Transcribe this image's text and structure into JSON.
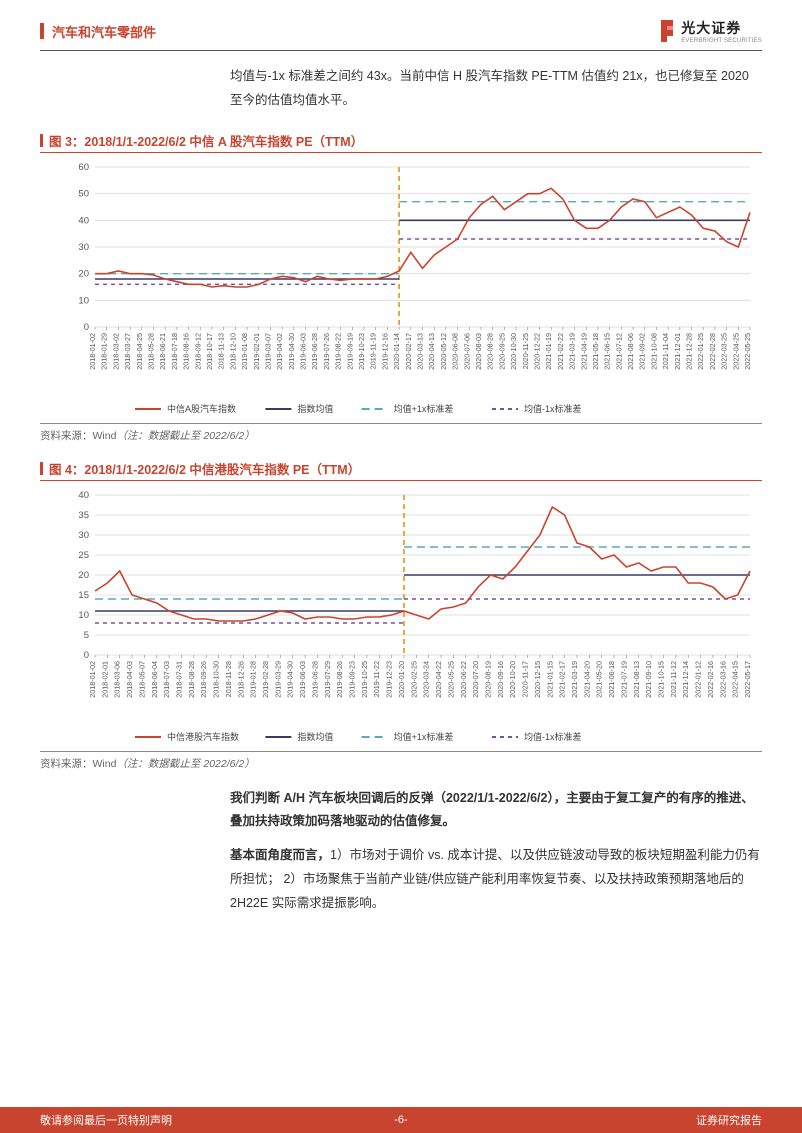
{
  "header": {
    "section_title": "汽车和汽车零部件",
    "logo_cn": "光大证券",
    "logo_en": "EVERBRIGHT SECURITIES",
    "logo_color": "#c8442f"
  },
  "intro_paragraph": "均值与-1x 标准差之间约 43x。当前中信 H 股汽车指数 PE-TTM 估值约 21x，也已修复至 2020 至今的估值均值水平。",
  "fig3": {
    "title": "图 3：2018/1/1-2022/6/2 中信 A 股汽车指数 PE（TTM）",
    "source_prefix": "资料来源：Wind",
    "source_note": "（注：数据截止至 2022/6/2）",
    "type": "line",
    "ylim": [
      0,
      60
    ],
    "yticks": [
      0,
      10,
      20,
      30,
      40,
      50,
      60
    ],
    "ytick_step": 10,
    "xlabels": [
      "2018-01-02",
      "2018-01-29",
      "2018-03-02",
      "2018-03-27",
      "2018-04-25",
      "2018-05-28",
      "2018-06-21",
      "2018-07-18",
      "2018-08-16",
      "2018-09-12",
      "2018-10-17",
      "2018-11-13",
      "2018-12-10",
      "2019-01-08",
      "2019-02-01",
      "2019-03-07",
      "2019-04-02",
      "2019-04-30",
      "2019-06-03",
      "2019-06-28",
      "2019-07-26",
      "2019-08-22",
      "2019-09-19",
      "2019-10-23",
      "2019-11-19",
      "2019-12-16",
      "2020-01-14",
      "2020-02-17",
      "2020-03-13",
      "2020-04-13",
      "2020-05-12",
      "2020-06-08",
      "2020-07-06",
      "2020-08-03",
      "2020-08-28",
      "2020-09-25",
      "2020-10-30",
      "2020-11-25",
      "2020-12-22",
      "2021-01-19",
      "2021-02-22",
      "2021-03-19",
      "2021-04-19",
      "2021-05-18",
      "2021-06-15",
      "2021-07-12",
      "2021-08-06",
      "2021-09-02",
      "2021-10-08",
      "2021-11-04",
      "2021-12-01",
      "2021-12-28",
      "2022-01-25",
      "2022-02-28",
      "2022-03-25",
      "2022-04-25",
      "2022-05-25"
    ],
    "vline_index": 26,
    "series_main": {
      "label": "中信A股汽车指数",
      "color": "#c8442f",
      "line_width": 1.6,
      "values": [
        20,
        20,
        21,
        20,
        20,
        19.5,
        18,
        17,
        16,
        16,
        15,
        15.5,
        15,
        15,
        16,
        18,
        19,
        18.5,
        17,
        19,
        18,
        17.5,
        18,
        18,
        18,
        19,
        21,
        28,
        22,
        27,
        30,
        33,
        41,
        46,
        49,
        44,
        47,
        50,
        50,
        52,
        48,
        40,
        37,
        37,
        40,
        45,
        48,
        47,
        41,
        43,
        45,
        42,
        37,
        36,
        32,
        30,
        43
      ],
      "segment1_mean": {
        "label": "指数均值",
        "color": "#3a3a6a",
        "dash": "none",
        "value": 18
      },
      "segment1_plus": {
        "label": "均值+1x标准差",
        "color": "#5aa9b8",
        "dash": "8,5",
        "value": 20
      },
      "segment1_minus": {
        "label": "均值-1x标准差",
        "color": "#7a4ea0",
        "dash": "4,4",
        "value": 16
      },
      "segment2_mean": {
        "value": 40
      },
      "segment2_plus": {
        "value": 47
      },
      "segment2_minus": {
        "value": 33
      }
    },
    "vline_color": "#e6a02c",
    "grid_color": "#d8d8d8",
    "label_fontsize": 7.2,
    "legend_fontsize": 9
  },
  "fig4": {
    "title": "图 4：2018/1/1-2022/6/2 中信港股汽车指数 PE（TTM）",
    "source_prefix": "资料来源：Wind",
    "source_note": "（注：数据截止至 2022/6/2）",
    "type": "line",
    "ylim": [
      0,
      40
    ],
    "yticks": [
      0,
      5,
      10,
      15,
      20,
      25,
      30,
      35,
      40
    ],
    "ytick_step": 5,
    "xlabels": [
      "2018-01-02",
      "2018-02-01",
      "2018-03-06",
      "2018-04-03",
      "2018-05-07",
      "2018-06-04",
      "2018-07-03",
      "2018-07-31",
      "2018-08-28",
      "2018-09-26",
      "2018-10-30",
      "2018-11-28",
      "2018-12-26",
      "2019-01-28",
      "2019-02-28",
      "2019-03-29",
      "2019-04-30",
      "2019-06-03",
      "2019-06-28",
      "2019-07-29",
      "2019-08-26",
      "2019-09-23",
      "2019-10-25",
      "2019-11-22",
      "2019-12-23",
      "2020-01-20",
      "2020-02-25",
      "2020-03-24",
      "2020-04-22",
      "2020-05-25",
      "2020-06-22",
      "2020-07-20",
      "2020-08-19",
      "2020-09-16",
      "2020-10-20",
      "2020-11-17",
      "2020-12-15",
      "2021-01-15",
      "2021-02-17",
      "2021-03-19",
      "2021-04-20",
      "2021-05-20",
      "2021-06-18",
      "2021-07-19",
      "2021-08-13",
      "2021-09-10",
      "2021-10-15",
      "2021-11-12",
      "2021-12-14",
      "2022-01-12",
      "2022-02-16",
      "2022-03-16",
      "2022-04-15",
      "2022-05-17"
    ],
    "vline_index": 25,
    "series_main": {
      "label": "中信港股汽车指数",
      "color": "#c8442f",
      "line_width": 1.6,
      "values": [
        16,
        18,
        21,
        15,
        14,
        13,
        11,
        10,
        9,
        9,
        8.5,
        8.5,
        8.5,
        9,
        10,
        11,
        10.5,
        9,
        9.5,
        9.5,
        9,
        9,
        9.5,
        9.5,
        10,
        11,
        10,
        9,
        11.5,
        12,
        13,
        17,
        20,
        19,
        22,
        26,
        30,
        37,
        35,
        28,
        27,
        24,
        25,
        22,
        23,
        21,
        22,
        22,
        18,
        18,
        17,
        14,
        15,
        21
      ],
      "segment1_mean": {
        "label": "指数均值",
        "color": "#3a3a6a",
        "dash": "none",
        "value": 11
      },
      "segment1_plus": {
        "label": "均值+1x标准差",
        "color": "#5aa9b8",
        "dash": "8,5",
        "value": 14
      },
      "segment1_minus": {
        "label": "均值-1x标准差",
        "color": "#7a4ea0",
        "dash": "4,4",
        "value": 8
      },
      "segment2_mean": {
        "value": 20
      },
      "segment2_plus": {
        "value": 27
      },
      "segment2_minus": {
        "value": 14
      }
    },
    "vline_color": "#e6a02c",
    "grid_color": "#d8d8d8",
    "label_fontsize": 7.2,
    "legend_fontsize": 9
  },
  "body_para1": "我们判断 A/H 汽车板块回调后的反弹（2022/1/1-2022/6/2），主要由于复工复产的有序的推进、叠加扶持政策加码落地驱动的估值修复。",
  "body_para2_lead": "基本面角度而言，",
  "body_para2_rest": "1）市场对于调价 vs. 成本计提、以及供应链波动导致的板块短期盈利能力仍有所担忧； 2）市场聚焦于当前产业链/供应链产能利用率恢复节奏、以及扶持政策预期落地后的 2H22E 实际需求提振影响。",
  "footer": {
    "left": "敬请参阅最后一页特别声明",
    "center": "-6-",
    "right": "证券研究报告",
    "bg_color": "#c8442f"
  }
}
